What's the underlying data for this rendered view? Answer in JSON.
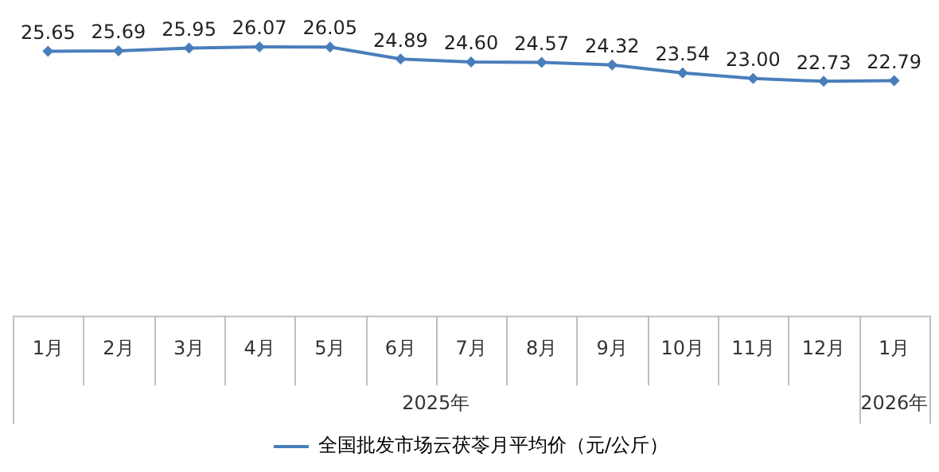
{
  "chart_data": {
    "type": "line",
    "x": [
      "2025-01",
      "2025-02",
      "2025-03",
      "2025-04",
      "2025-05",
      "2025-06",
      "2025-07",
      "2025-08",
      "2025-09",
      "2025-10",
      "2025-11",
      "2025-12",
      "2026-01"
    ],
    "xlim": [
      "2024-12-16",
      "2026-01-16"
    ],
    "xticks": [
      {
        "value": "2025-01",
        "label": "1月"
      },
      {
        "value": "2025-02",
        "label": "2月"
      },
      {
        "value": "2025-03",
        "label": "3月"
      },
      {
        "value": "2025-04",
        "label": "4月"
      },
      {
        "value": "2025-05",
        "label": "5月"
      },
      {
        "value": "2025-06",
        "label": "6月"
      },
      {
        "value": "2025-07",
        "label": "7月"
      },
      {
        "value": "2025-08",
        "label": "8月"
      },
      {
        "value": "2025-09",
        "label": "9月"
      },
      {
        "value": "2025-10",
        "label": "10月"
      },
      {
        "value": "2025-11",
        "label": "11月"
      },
      {
        "value": "2025-12",
        "label": "12月"
      },
      {
        "value": "2026-01",
        "label": "1月"
      }
    ],
    "series": [
      {
        "name": "全国批发市场云茯苓月平均价（元/公斤）",
        "color": "#4a7ebb",
        "values": [
          25.65,
          25.69,
          25.95,
          26.07,
          26.05,
          24.89,
          24.6,
          24.57,
          24.32,
          23.54,
          23.0,
          22.73,
          22.79
        ],
        "value_labels": [
          "25.65",
          "25.69",
          "25.95",
          "26.07",
          "26.05",
          "24.89",
          "24.60",
          "24.57",
          "24.32",
          "23.54",
          "23.00",
          "22.73",
          "22.79"
        ]
      }
    ],
    "annotations": [
      "2025年",
      "2026年"
    ],
    "marker": "diamond",
    "legend": "bottom",
    "tick_labels": "x"
  }
}
